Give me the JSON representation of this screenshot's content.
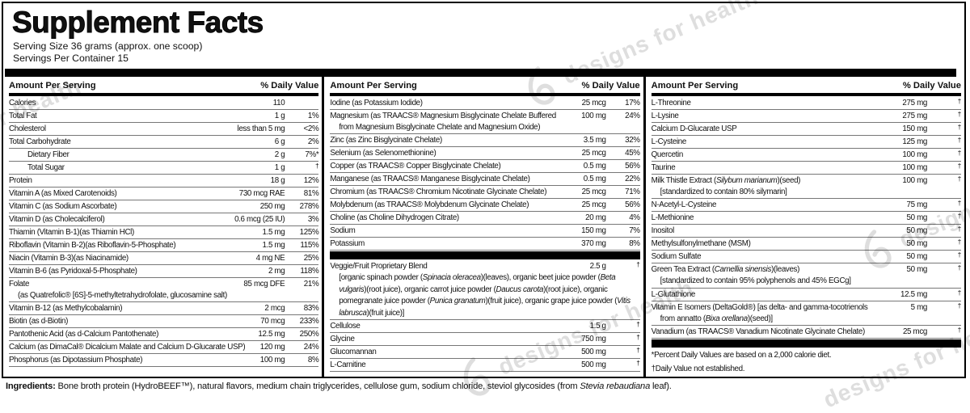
{
  "watermark": {
    "text": "designs for health"
  },
  "label": {
    "title": "Supplement Facts",
    "serving_size": "Serving Size 36 grams (approx. one scoop)",
    "servings_per_container": "Servings Per Container 15",
    "amount_header": "Amount Per Serving",
    "dv_header": "% Daily Value"
  },
  "columns": [
    {
      "rows": [
        {
          "name": "Calories",
          "amount": "110",
          "dv": ""
        },
        {
          "name": "Total Fat",
          "amount": "1 g",
          "dv": "1%"
        },
        {
          "name": "Cholesterol",
          "amount": "less than 5 mg",
          "dv": "<2%"
        },
        {
          "name": "Total Carbohydrate",
          "amount": "6 g",
          "dv": "2%"
        },
        {
          "name": "Dietary Fiber",
          "amount": "2 g",
          "dv": "7%*",
          "indent": true
        },
        {
          "name": "Total Sugar",
          "amount": "1 g",
          "dv": "†",
          "indent": true
        },
        {
          "name": "Protein",
          "amount": "18 g",
          "dv": "12%"
        },
        {
          "name": "Vitamin A (as Mixed Carotenoids)",
          "amount": "730 mcg RAE",
          "dv": "81%"
        },
        {
          "name": "Vitamin C (as Sodium Ascorbate)",
          "amount": "250 mg",
          "dv": "278%"
        },
        {
          "name": "Vitamin D (as Cholecalciferol)",
          "amount": "0.6 mcg (25 IU)",
          "dv": "3%"
        },
        {
          "name": "Thiamin (Vitamin B-1)(as Thiamin HCl)",
          "amount": "1.5 mg",
          "dv": "125%"
        },
        {
          "name": "Riboflavin (Vitamin B-2)(as Riboflavin-5-Phosphate)",
          "amount": "1.5 mg",
          "dv": "115%"
        },
        {
          "name": "Niacin (Vitamin B-3)(as Niacinamide)",
          "amount": "4 mg NE",
          "dv": "25%"
        },
        {
          "name": "Vitamin B-6 (as Pyridoxal-5-Phosphate)",
          "amount": "2 mg",
          "dv": "118%"
        },
        {
          "name": "Folate",
          "amount": "85 mcg DFE",
          "dv": "21%",
          "sub": [
            "(as Quatrefolic® [6S]-5-methyltetrahydrofolate, glucosamine salt)"
          ]
        },
        {
          "name": "Vitamin B-12 (as Methylcobalamin)",
          "amount": "2 mcg",
          "dv": "83%"
        },
        {
          "name": "Biotin (as d-Biotin)",
          "amount": "70 mcg",
          "dv": "233%"
        },
        {
          "name": "Pantothenic Acid (as d-Calcium Pantothenate)",
          "amount": "12.5 mg",
          "dv": "250%"
        },
        {
          "name": "Calcium (as DimaCal® Dicalcium Malate and Calcium D-Glucarate USP)",
          "amount": "120 mg",
          "dv": "24%"
        },
        {
          "name": "Phosphorus (as Dipotassium Phosphate)",
          "amount": "100 mg",
          "dv": "8%"
        }
      ]
    },
    {
      "rows": [
        {
          "name": "Iodine (as Potassium Iodide)",
          "amount": "25 mcg",
          "dv": "17%"
        },
        {
          "name": "Magnesium (as TRAACS® Magnesium Bisglycinate Chelate Buffered",
          "amount": "100 mg",
          "dv": "24%",
          "sub": [
            "from Magnesium Bisglycinate Chelate and Magnesium Oxide)"
          ]
        },
        {
          "name": "Zinc (as Zinc Bisglycinate Chelate)",
          "amount": "3.5 mg",
          "dv": "32%"
        },
        {
          "name": "Selenium (as Selenomethionine)",
          "amount": "25 mcg",
          "dv": "45%"
        },
        {
          "name": "Copper (as TRAACS® Copper Bisglycinate Chelate)",
          "amount": "0.5 mg",
          "dv": "56%"
        },
        {
          "name": "Manganese (as TRAACS® Manganese Bisglycinate Chelate)",
          "amount": "0.5 mg",
          "dv": "22%"
        },
        {
          "name": "Chromium (as TRAACS® Chromium Nicotinate Glycinate Chelate)",
          "amount": "25 mcg",
          "dv": "71%"
        },
        {
          "name": "Molybdenum (as TRAACS® Molybdenum Glycinate Chelate)",
          "amount": "25 mcg",
          "dv": "56%"
        },
        {
          "name": "Choline (as Choline Dihydrogen Citrate)",
          "amount": "20 mg",
          "dv": "4%"
        },
        {
          "name": "Sodium",
          "amount": "150 mg",
          "dv": "7%"
        },
        {
          "name": "Potassium",
          "amount": "370 mg",
          "dv": "8%"
        },
        {
          "type": "bar"
        },
        {
          "name": "Veggie/Fruit Proprietary Blend",
          "amount": "2.5 g",
          "dv": "†",
          "sub": [
            "[organic spinach powder (_Spinacia oleracea_)(leaves), organic beet juice powder (_Beta vulgaris_)(root juice), organic carrot juice powder (_Daucus carota_)(root juice), organic pomegranate juice powder (_Punica granatum_)(fruit juice), organic grape juice powder (_Vitis labrusca_)(fruit juice)]"
          ]
        },
        {
          "name": "Cellulose",
          "amount": "1.5 g",
          "dv": "†"
        },
        {
          "name": "Glycine",
          "amount": "750 mg",
          "dv": "†"
        },
        {
          "name": "Glucomannan",
          "amount": "500 mg",
          "dv": "†"
        },
        {
          "name": "L-Carnitine",
          "amount": "500 mg",
          "dv": "†"
        }
      ]
    },
    {
      "rows": [
        {
          "name": "L-Threonine",
          "amount": "275 mg",
          "dv": "†"
        },
        {
          "name": "L-Lysine",
          "amount": "275 mg",
          "dv": "†"
        },
        {
          "name": "Calcium D-Glucarate USP",
          "amount": "150 mg",
          "dv": "†"
        },
        {
          "name": "L-Cysteine",
          "amount": "125 mg",
          "dv": "†"
        },
        {
          "name": "Quercetin",
          "amount": "100 mg",
          "dv": "†"
        },
        {
          "name": "Taurine",
          "amount": "100 mg",
          "dv": "†"
        },
        {
          "name": "Milk Thistle Extract (_Silybum marianum_)(seed)",
          "amount": "100 mg",
          "dv": "†",
          "sub": [
            "[standardized to contain 80% silymarin]"
          ]
        },
        {
          "name": "N-Acetyl-L-Cysteine",
          "amount": "75 mg",
          "dv": "†"
        },
        {
          "name": "L-Methionine",
          "amount": "50 mg",
          "dv": "†"
        },
        {
          "name": "Inositol",
          "amount": "50 mg",
          "dv": "†"
        },
        {
          "name": "Methylsulfonylmethane (MSM)",
          "amount": "50 mg",
          "dv": "†"
        },
        {
          "name": "Sodium Sulfate",
          "amount": "50 mg",
          "dv": "†"
        },
        {
          "name": "Green Tea Extract (_Camellia sinensis_)(leaves)",
          "amount": "50 mg",
          "dv": "†",
          "sub": [
            "[standardized to contain 95% polyphenols and 45% EGCg]"
          ]
        },
        {
          "name": "L-Glutathione",
          "amount": "12.5 mg",
          "dv": "†"
        },
        {
          "name": "Vitamin E Isomers (DeltaGold®) [as delta- and gamma-tocotrienols",
          "amount": "5 mg",
          "dv": "†",
          "sub": [
            "from annatto (_Bixa orellana_)(seed)]"
          ]
        },
        {
          "name": "Vanadium (as TRAACS® Vanadium Nicotinate Glycinate Chelate)",
          "amount": "25 mcg",
          "dv": "†"
        },
        {
          "type": "bar"
        },
        {
          "type": "note",
          "text": "*Percent Daily Values are based on a 2,000 calorie diet."
        },
        {
          "type": "note",
          "text": "†Daily Value not established."
        }
      ]
    }
  ],
  "ingredients": {
    "segments": [
      {
        "t": "Ingredients: ",
        "b": true
      },
      {
        "t": "Bone broth protein (HydroBEEF™), natural flavors, medium chain triglycerides, cellulose gum, sodium chloride, steviol glycosides (from "
      },
      {
        "t": "Stevia rebaudiana",
        "i": true
      },
      {
        "t": " leaf)."
      }
    ]
  }
}
